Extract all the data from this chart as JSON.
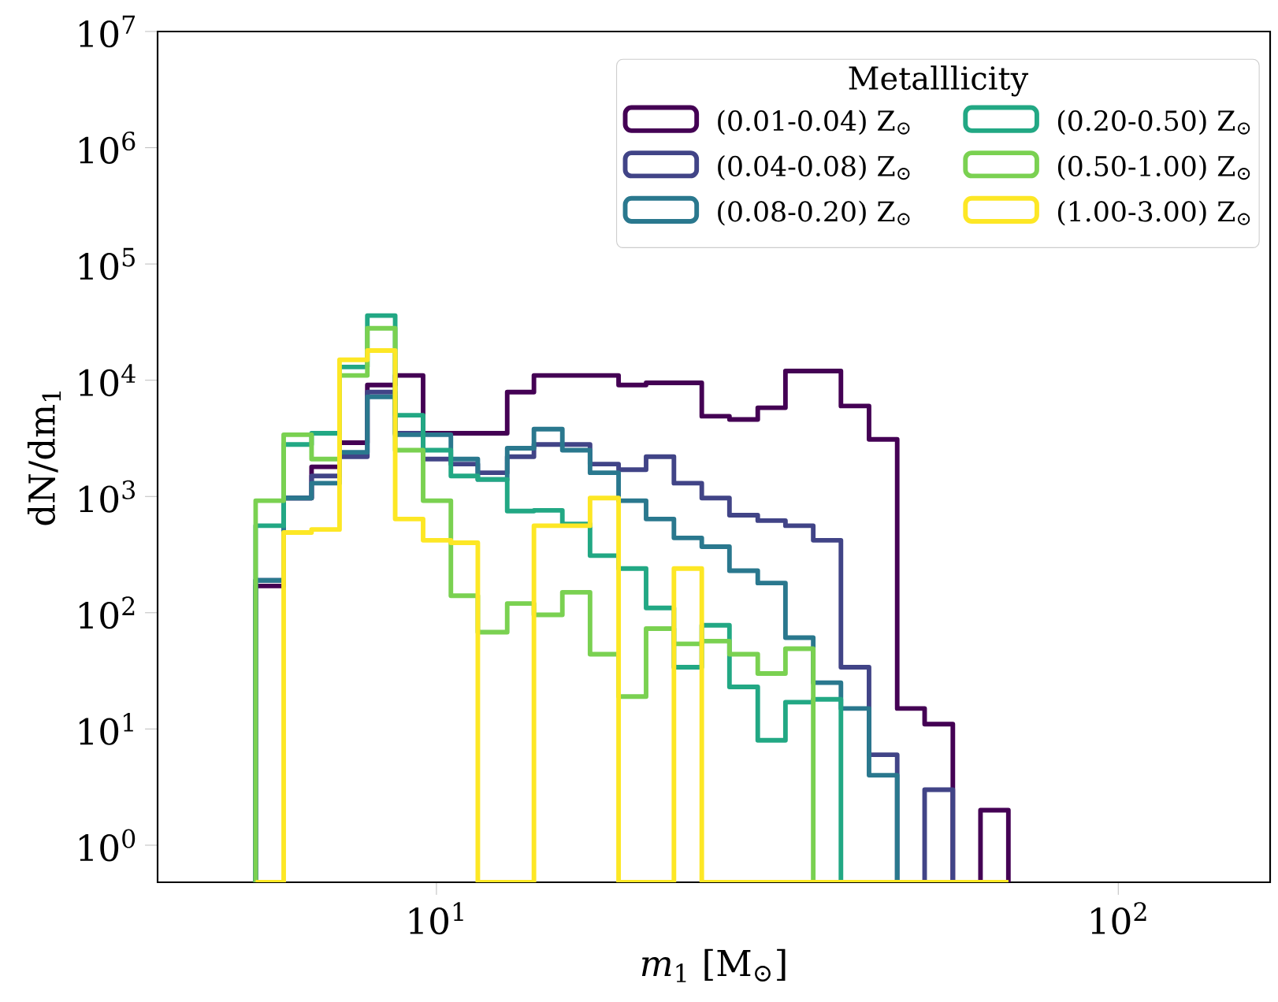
{
  "chart_data": {
    "type": "histogram",
    "xlabel": "*m*$_{1}$ [M$_{⊙}$]",
    "ylabel": "dN/dm$_{1}$",
    "log": "xy",
    "legend": "top right",
    "legend_title": "Metalllicity",
    "xlim": [
      3.9,
      167
    ],
    "ylim": [
      0.48,
      10000000
    ],
    "xticks": [
      {
        "value": 10,
        "label": "10$^{1}$"
      },
      {
        "value": 100,
        "label": "10$^{2}$"
      }
    ],
    "yticks": [
      {
        "value": 1,
        "label": "10$^{0}$"
      },
      {
        "value": 10,
        "label": "10$^{1}$"
      },
      {
        "value": 100,
        "label": "10$^{2}$"
      },
      {
        "value": 1000,
        "label": "10$^{3}$"
      },
      {
        "value": 10000,
        "label": "10$^{4}$"
      },
      {
        "value": 100000,
        "label": "10$^{5}$"
      },
      {
        "value": 1000000,
        "label": "10$^{6}$"
      },
      {
        "value": 10000000,
        "label": "10$^{7}$"
      }
    ],
    "bins": [
      5.43,
      5.97,
      6.56,
      7.21,
      7.92,
      8.7,
      9.56,
      10.5,
      11.5,
      12.7,
      13.9,
      15.3,
      16.8,
      18.5,
      20.3,
      22.3,
      24.5,
      26.9,
      29.6,
      32.5,
      35.7,
      39.2,
      43.1,
      47.4,
      52.0,
      57.2,
      62.8,
      69.0
    ],
    "series": [
      {
        "name": "(0.01-0.04) Z$_{⊙}$",
        "color": "#440154",
        "values": [
          170,
          970,
          1800,
          2900,
          9100,
          11000,
          3500,
          3500,
          3500,
          7900,
          11000,
          11000,
          11000,
          9100,
          9500,
          9500,
          4900,
          4600,
          5800,
          12000,
          12000,
          6000,
          3100,
          15,
          11,
          null,
          2
        ]
      },
      {
        "name": "(0.04-0.08) Z$_{⊙}$",
        "color": "#414487",
        "values": [
          190,
          970,
          1500,
          2200,
          7900,
          3500,
          2100,
          1900,
          1600,
          2200,
          2800,
          2800,
          1900,
          1700,
          2200,
          1300,
          970,
          690,
          620,
          560,
          420,
          34,
          6,
          null,
          3,
          null,
          null
        ]
      },
      {
        "name": "(0.08-0.20) Z$_{⊙}$",
        "color": "#2a788e",
        "values": [
          190,
          970,
          1300,
          2400,
          7200,
          3400,
          3400,
          2100,
          1400,
          2600,
          3800,
          2500,
          1600,
          920,
          640,
          440,
          370,
          230,
          180,
          61,
          25,
          15,
          4,
          null,
          null,
          null,
          null
        ]
      },
      {
        "name": "(0.20-0.50) Z$_{⊙}$",
        "color": "#22a884",
        "values": [
          560,
          2800,
          3500,
          13000,
          36000,
          5000,
          2500,
          1500,
          1400,
          750,
          760,
          580,
          310,
          240,
          110,
          34,
          78,
          23,
          8,
          17,
          18,
          null,
          null,
          null,
          null,
          null,
          null
        ]
      },
      {
        "name": "(0.50-1.00) Z$_{⊙}$",
        "color": "#7ad151",
        "values": [
          920,
          3400,
          2100,
          11000,
          28000,
          2500,
          920,
          140,
          68,
          120,
          96,
          150,
          44,
          19,
          73,
          54,
          57,
          44,
          30,
          49,
          null,
          null,
          null,
          null,
          null,
          null,
          null
        ]
      },
      {
        "name": "(1.00-3.00) Z$_{⊙}$",
        "color": "#fde725",
        "values": [
          null,
          490,
          520,
          15000,
          18000,
          640,
          420,
          400,
          null,
          null,
          560,
          560,
          970,
          null,
          null,
          240,
          null,
          null,
          null,
          null,
          null,
          null,
          null,
          null,
          null,
          null,
          null
        ]
      }
    ]
  }
}
